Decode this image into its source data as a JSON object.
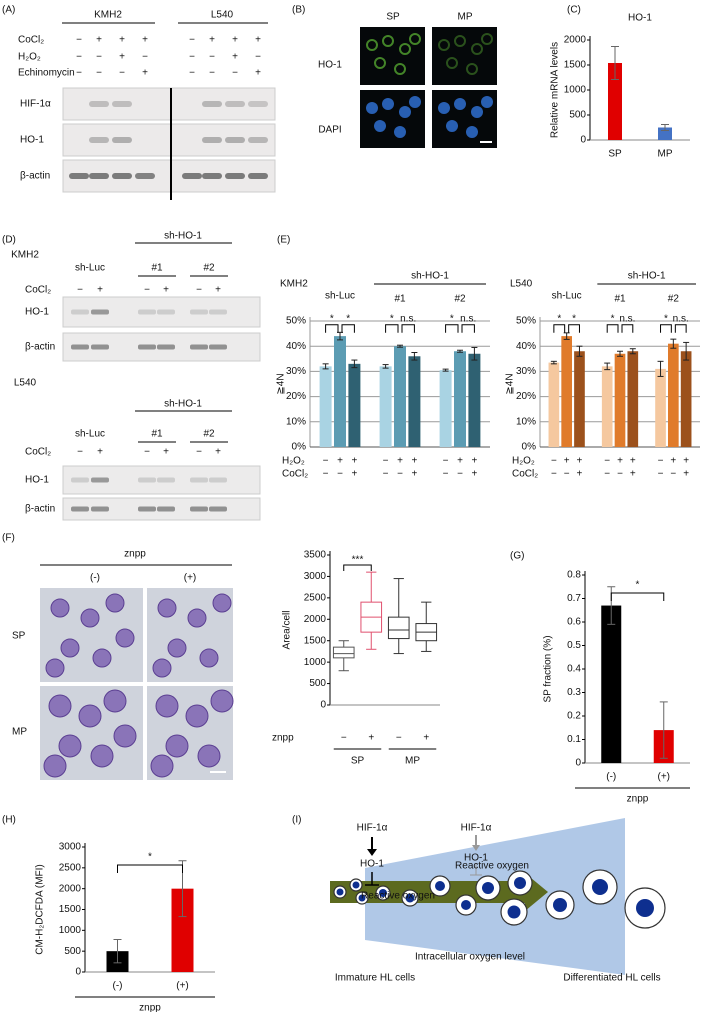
{
  "panel_labels": [
    "(A)",
    "(B)",
    "(C)",
    "(D)",
    "(E)",
    "(F)",
    "(G)",
    "(H)",
    "(I)"
  ],
  "blot_A": {
    "cell_lines": [
      "KMH2",
      "L540"
    ],
    "conditions": [
      {
        "label": "CoCl₂",
        "signs": [
          "−",
          "+",
          "+",
          "+",
          "−",
          "+",
          "+",
          "+"
        ]
      },
      {
        "label": "H₂O₂",
        "signs": [
          "−",
          "−",
          "+",
          "−",
          "−",
          "−",
          "+",
          "−"
        ]
      },
      {
        "label": "Echinomycin",
        "signs": [
          "−",
          "−",
          "−",
          "+",
          "−",
          "−",
          "−",
          "+"
        ]
      }
    ],
    "rows": [
      "HIF-1α",
      "HO-1",
      "β-actin"
    ]
  },
  "image_B": {
    "columns": [
      "SP",
      "MP"
    ],
    "rows": [
      "HO-1",
      "DAPI"
    ]
  },
  "blot_D": [
    {
      "cell_line": "KMH2",
      "group_header": "sh-HO-1",
      "groups": [
        "sh-Luc",
        "#1",
        "#2"
      ],
      "condition": "CoCl₂",
      "signs": [
        "−",
        "+",
        "−",
        "+",
        "−",
        "+"
      ],
      "rows": [
        "HO-1",
        "β-actin"
      ]
    },
    {
      "cell_line": "L540",
      "group_header": "sh-HO-1",
      "groups": [
        "sh-Luc",
        "#1",
        "#2"
      ],
      "condition": "CoCl₂",
      "signs": [
        "−",
        "+",
        "−",
        "+",
        "−",
        "+"
      ],
      "rows": [
        "HO-1",
        "β-actin"
      ]
    }
  ],
  "image_F": {
    "header": "znpp",
    "columns": [
      "(-)",
      "(+)"
    ],
    "rows": [
      "SP",
      "MP"
    ]
  },
  "diagram_I": {
    "left": {
      "factor": "HIF-1α",
      "enzyme": "HO-1",
      "product": "Reactive oxygen"
    },
    "right": {
      "factor": "HIF-1α",
      "enzyme": "HO-1",
      "product": "Reactive oxygen"
    },
    "arrow_label": "Intracellular oxygen level",
    "start": "Immature HL cells",
    "end": "Differentiated HL cells"
  },
  "chart_data": [
    {
      "type": "bar",
      "title": "HO-1",
      "categories": [
        "SP",
        "MP"
      ],
      "values": [
        1540,
        250
      ],
      "errors": [
        330,
        60
      ],
      "colors": [
        "#e00000",
        "#4472c4"
      ],
      "ylabel": "Relative mRNA levels",
      "ylim": [
        0,
        2000
      ],
      "yticks": [
        0,
        500,
        1000,
        1500,
        2000
      ]
    },
    {
      "type": "grouped_bar",
      "cell_line": "KMH2",
      "group_header": "sh-HO-1",
      "categories": [
        "sh-Luc",
        "#1",
        "#2"
      ],
      "series": [
        {
          "color": "#a9d3e3",
          "values": [
            32,
            32,
            30.5
          ],
          "errors": [
            1,
            0.7,
            0.4
          ]
        },
        {
          "color": "#5c9cb3",
          "values": [
            44,
            40,
            38
          ],
          "errors": [
            1.5,
            0.4,
            0.4
          ]
        },
        {
          "color": "#2f6172",
          "values": [
            33,
            36,
            37
          ],
          "errors": [
            1.5,
            1.5,
            2.5
          ]
        }
      ],
      "ylabel": "≧4N",
      "ylim": [
        0,
        50
      ],
      "yticks": [
        {
          "value": 0,
          "label": "0%"
        },
        {
          "value": 10,
          "label": "10%"
        },
        {
          "value": 20,
          "label": "20%"
        },
        {
          "value": 30,
          "label": "30%"
        },
        {
          "value": 40,
          "label": "40%"
        },
        {
          "value": 50,
          "label": "50%"
        }
      ],
      "grid": true,
      "sign_rows": [
        {
          "label": "H₂O₂",
          "signs": [
            [
              "−",
              "+",
              "+"
            ],
            [
              "−",
              "+",
              "+"
            ],
            [
              "−",
              "+",
              "+"
            ]
          ]
        },
        {
          "label": "CoCl₂",
          "signs": [
            [
              "−",
              "−",
              "+"
            ],
            [
              "−",
              "−",
              "+"
            ],
            [
              "−",
              "−",
              "+"
            ]
          ]
        }
      ],
      "significance": [
        [
          "*",
          "*"
        ],
        [
          "*",
          "n.s."
        ],
        [
          "*",
          "n.s."
        ]
      ]
    },
    {
      "type": "grouped_bar",
      "cell_line": "L540",
      "group_header": "sh-HO-1",
      "categories": [
        "sh-Luc",
        "#1",
        "#2"
      ],
      "series": [
        {
          "color": "#f5c89f",
          "values": [
            33.5,
            32,
            31
          ],
          "errors": [
            0.5,
            1.3,
            3
          ]
        },
        {
          "color": "#e07b2b",
          "values": [
            44,
            37,
            41
          ],
          "errors": [
            1.3,
            1,
            1.8
          ]
        },
        {
          "color": "#9c511c",
          "values": [
            38,
            38,
            38
          ],
          "errors": [
            2,
            1,
            3.5
          ]
        }
      ],
      "ylabel": "≧4N",
      "ylim": [
        0,
        50
      ],
      "yticks": [
        {
          "value": 0,
          "label": "0%"
        },
        {
          "value": 10,
          "label": "10%"
        },
        {
          "value": 20,
          "label": "20%"
        },
        {
          "value": 30,
          "label": "30%"
        },
        {
          "value": 40,
          "label": "40%"
        },
        {
          "value": 50,
          "label": "50%"
        }
      ],
      "grid": true,
      "sign_rows": [
        {
          "label": "H₂O₂",
          "signs": [
            [
              "−",
              "+",
              "+"
            ],
            [
              "−",
              "+",
              "+"
            ],
            [
              "−",
              "+",
              "+"
            ]
          ]
        },
        {
          "label": "CoCl₂",
          "signs": [
            [
              "−",
              "−",
              "+"
            ],
            [
              "−",
              "−",
              "+"
            ],
            [
              "−",
              "−",
              "+"
            ]
          ]
        }
      ],
      "significance": [
        [
          "*",
          "*"
        ],
        [
          "*",
          "n.s."
        ],
        [
          "*",
          "n.s."
        ]
      ]
    },
    {
      "type": "box",
      "ylabel": "Area/cell",
      "ylim": [
        0,
        3500
      ],
      "yticks": [
        0,
        500,
        1000,
        1500,
        2000,
        2500,
        3000,
        3500
      ],
      "sign_label": "znpp",
      "signs": [
        "−",
        "+",
        "−",
        "+"
      ],
      "groups": [
        "SP",
        "MP"
      ],
      "boxes": [
        {
          "min": 800,
          "q1": 1100,
          "median": 1200,
          "q3": 1350,
          "max": 1500,
          "color": "#555555"
        },
        {
          "min": 1300,
          "q1": 1700,
          "median": 2050,
          "q3": 2400,
          "max": 3100,
          "color": "#e0506e"
        },
        {
          "min": 1200,
          "q1": 1550,
          "median": 1750,
          "q3": 2050,
          "max": 2950,
          "color": "#333333"
        },
        {
          "min": 1250,
          "q1": 1500,
          "median": 1700,
          "q3": 1900,
          "max": 2400,
          "color": "#333333"
        }
      ],
      "significance": "***"
    },
    {
      "type": "bar",
      "categories": [
        "(-)",
        "(+)"
      ],
      "values": [
        0.67,
        0.14
      ],
      "errors": [
        0.08,
        0.12
      ],
      "colors": [
        "#000000",
        "#e00000"
      ],
      "ylabel": "SP fraction (%)",
      "xlabel": "znpp",
      "ylim": [
        0,
        0.8
      ],
      "yticks": [
        0,
        0.1,
        0.2,
        0.3,
        0.4,
        0.5,
        0.6,
        0.7,
        0.8
      ],
      "significance": "*"
    },
    {
      "type": "bar",
      "categories": [
        "(-)",
        "(+)"
      ],
      "values": [
        500,
        2000
      ],
      "errors": [
        280,
        670
      ],
      "colors": [
        "#000000",
        "#e00000"
      ],
      "ylabel": "CM-H₂DCFDA (MFI)",
      "xlabel": "znpp",
      "ylim": [
        0,
        3000
      ],
      "yticks": [
        0,
        500,
        1000,
        1500,
        2000,
        2500,
        3000
      ],
      "significance": "*"
    }
  ]
}
